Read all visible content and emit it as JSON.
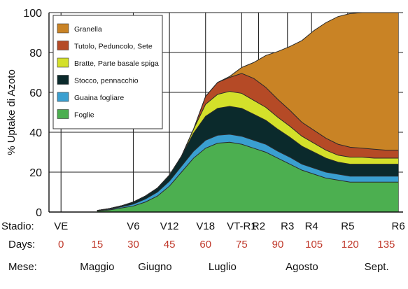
{
  "chart_data": {
    "type": "area",
    "stacked": true,
    "ylabel": "% Uptake di Azoto",
    "ylim": [
      0,
      100
    ],
    "yticks": [
      0,
      20,
      40,
      60,
      80,
      100
    ],
    "grid": true,
    "legend_position": "top-left",
    "x": [
      15,
      20,
      25,
      30,
      35,
      40,
      45,
      50,
      55,
      60,
      65,
      70,
      75,
      80,
      85,
      90,
      95,
      100,
      105,
      110,
      115,
      120,
      125,
      130,
      135,
      140
    ],
    "series": [
      {
        "name": "Foglie",
        "color": "#4caf50",
        "values": [
          0.5,
          1,
          2,
          3,
          5,
          8,
          13,
          20,
          27,
          32,
          34.5,
          35,
          34,
          32,
          30,
          27,
          24,
          21,
          19,
          17,
          16,
          15,
          15,
          15,
          15,
          15
        ]
      },
      {
        "name": "Guaina fogliare",
        "color": "#3a9fd0",
        "values": [
          0.2,
          0.4,
          0.6,
          1,
          1.5,
          2,
          2.5,
          3,
          3.5,
          4,
          4,
          4,
          4,
          4,
          4,
          3.5,
          3.5,
          3,
          3,
          3,
          3,
          3,
          3,
          3,
          3,
          3
        ]
      },
      {
        "name": "Stocco, pennacchio",
        "color": "#0b2a2c",
        "values": [
          0.1,
          0.3,
          0.5,
          1,
          1.5,
          2,
          3,
          5,
          9,
          12,
          13.5,
          14,
          14,
          13,
          12,
          11,
          10,
          9,
          8,
          7,
          6,
          6,
          6,
          6,
          6,
          6
        ]
      },
      {
        "name": "Bratte, Parte basale spiga",
        "color": "#d4e02a",
        "values": [
          0,
          0,
          0,
          0,
          0,
          0,
          0,
          0,
          2,
          6,
          7,
          7.5,
          7.5,
          7,
          6.5,
          6,
          5.5,
          5,
          4.5,
          4,
          3.5,
          3.5,
          3.5,
          3,
          3,
          3
        ]
      },
      {
        "name": "Tutolo, Peduncolo, Sete",
        "color": "#b54a26",
        "values": [
          0,
          0,
          0,
          0,
          0,
          0,
          0,
          0,
          0,
          4,
          6,
          7,
          10,
          11,
          10,
          9,
          8,
          7,
          6.5,
          6,
          5.5,
          5,
          4.5,
          4.5,
          4,
          4
        ]
      },
      {
        "name": "Granella",
        "color": "#c98325",
        "values": [
          0,
          0,
          0,
          0,
          0,
          0,
          0,
          0,
          0,
          0,
          0,
          0.5,
          3,
          8,
          16,
          24,
          32,
          41,
          50,
          58,
          64,
          67,
          68,
          68.5,
          69,
          69
        ]
      }
    ],
    "stages": [
      {
        "label": "VE",
        "day": 0
      },
      {
        "label": "V6",
        "day": 30
      },
      {
        "label": "V12",
        "day": 45
      },
      {
        "label": "V18",
        "day": 60
      },
      {
        "label": "VT-R1",
        "day": 75
      },
      {
        "label": "R2",
        "day": 82
      },
      {
        "label": "R3",
        "day": 94
      },
      {
        "label": "R4",
        "day": 104
      },
      {
        "label": "R5",
        "day": 119
      },
      {
        "label": "R6",
        "day": 140
      }
    ],
    "days": [
      0,
      15,
      30,
      45,
      60,
      75,
      90,
      105,
      120,
      135
    ],
    "months": [
      {
        "label": "Maggio",
        "day": 15
      },
      {
        "label": "Giugno",
        "day": 39
      },
      {
        "label": "Luglio",
        "day": 67
      },
      {
        "label": "Agosto",
        "day": 100
      },
      {
        "label": "Sept.",
        "day": 131
      }
    ],
    "row_labels": {
      "stage": "Stadio:",
      "days": "Days:",
      "month": "Mese:"
    }
  }
}
